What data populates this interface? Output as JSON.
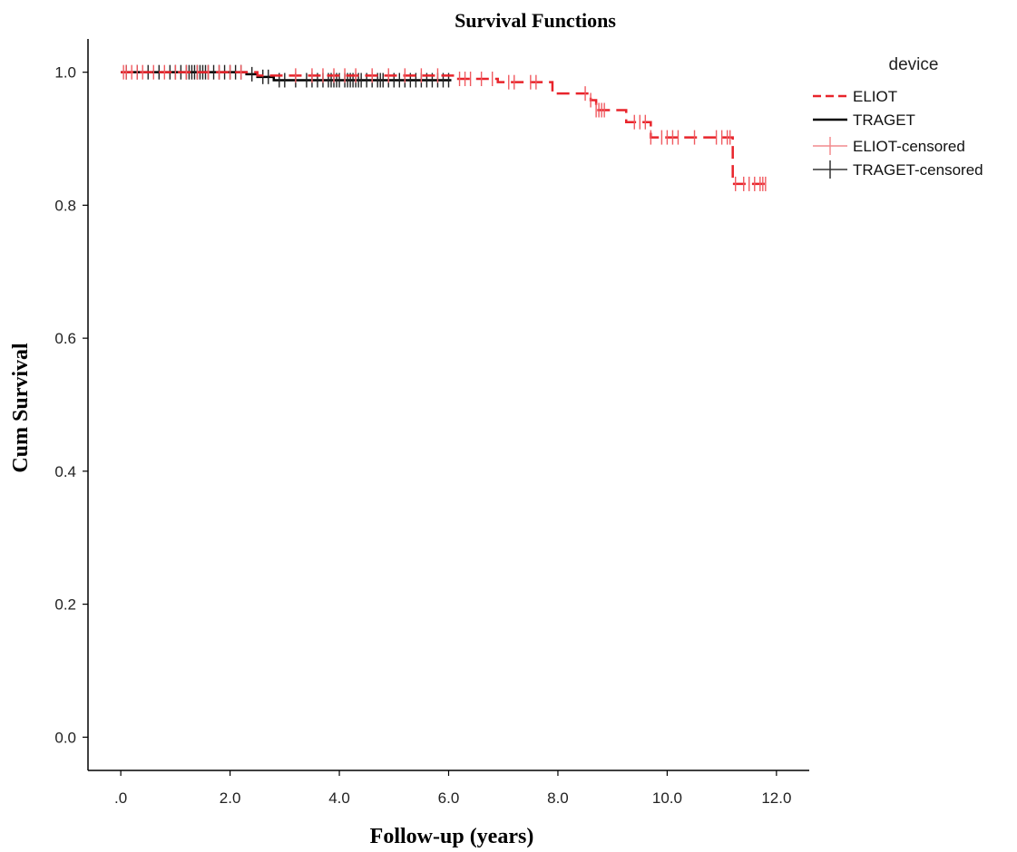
{
  "chart_data": {
    "type": "line",
    "title": "Survival Functions",
    "xlabel": "Follow-up (years)",
    "ylabel": "Cum Survival",
    "xlim": [
      -0.6,
      12.6
    ],
    "ylim": [
      -0.05,
      1.05
    ],
    "x_ticks": [
      0,
      2,
      4,
      6,
      8,
      10,
      12
    ],
    "x_tick_labels": [
      ".0",
      "2.0",
      "4.0",
      "6.0",
      "8.0",
      "10.0",
      "12.0"
    ],
    "y_ticks": [
      0,
      0.2,
      0.4,
      0.6,
      0.8,
      1.0
    ],
    "y_tick_labels": [
      "0.0",
      "0.2",
      "0.4",
      "0.6",
      "0.8",
      "1.0"
    ],
    "grid": false,
    "legend": {
      "title": "device",
      "position": "top-right",
      "entries": [
        "ELIOT",
        "TRAGET",
        "ELIOT-censored",
        "TRAGET-censored"
      ]
    },
    "series": [
      {
        "name": "ELIOT",
        "style": "dashed",
        "color": "#e8242b",
        "steps": [
          [
            0,
            1.0
          ],
          [
            2.5,
            0.995
          ],
          [
            6.1,
            0.99
          ],
          [
            6.9,
            0.985
          ],
          [
            7.9,
            0.968
          ],
          [
            8.6,
            0.958
          ],
          [
            8.7,
            0.943
          ],
          [
            9.25,
            0.925
          ],
          [
            9.7,
            0.902
          ],
          [
            11.2,
            0.832
          ],
          [
            11.85,
            0.832
          ]
        ],
        "censored": [
          0.05,
          0.1,
          0.2,
          0.3,
          0.4,
          0.6,
          0.8,
          1.0,
          1.2,
          1.4,
          1.6,
          1.8,
          2.0,
          2.2,
          3.2,
          3.5,
          3.7,
          3.9,
          4.1,
          4.3,
          4.6,
          4.9,
          5.2,
          5.5,
          5.8,
          6.2,
          6.3,
          6.4,
          6.6,
          6.8,
          7.1,
          7.2,
          7.5,
          7.6,
          8.5,
          8.6,
          8.7,
          8.75,
          8.8,
          8.85,
          9.4,
          9.5,
          9.6,
          9.7,
          9.9,
          10.0,
          10.1,
          10.2,
          10.5,
          10.9,
          11.0,
          11.1,
          11.15,
          11.25,
          11.4,
          11.5,
          11.6,
          11.7,
          11.75,
          11.8
        ]
      },
      {
        "name": "TRAGET",
        "style": "solid",
        "color": "#000000",
        "steps": [
          [
            0,
            1.0
          ],
          [
            2.3,
            0.997
          ],
          [
            2.5,
            0.993
          ],
          [
            2.8,
            0.988
          ],
          [
            6.05,
            0.988
          ]
        ],
        "censored": [
          0.1,
          0.3,
          0.5,
          0.7,
          0.9,
          1.0,
          1.1,
          1.2,
          1.25,
          1.3,
          1.35,
          1.4,
          1.45,
          1.5,
          1.55,
          1.6,
          1.7,
          1.8,
          1.9,
          2.0,
          2.1,
          2.2,
          2.4,
          2.6,
          2.7,
          2.9,
          3.0,
          3.2,
          3.4,
          3.5,
          3.6,
          3.7,
          3.8,
          3.85,
          3.9,
          3.95,
          4.0,
          4.1,
          4.15,
          4.2,
          4.25,
          4.3,
          4.35,
          4.4,
          4.5,
          4.6,
          4.7,
          4.75,
          4.8,
          4.9,
          5.0,
          5.1,
          5.2,
          5.3,
          5.4,
          5.5,
          5.6,
          5.7,
          5.8,
          5.9,
          6.0
        ]
      }
    ]
  }
}
